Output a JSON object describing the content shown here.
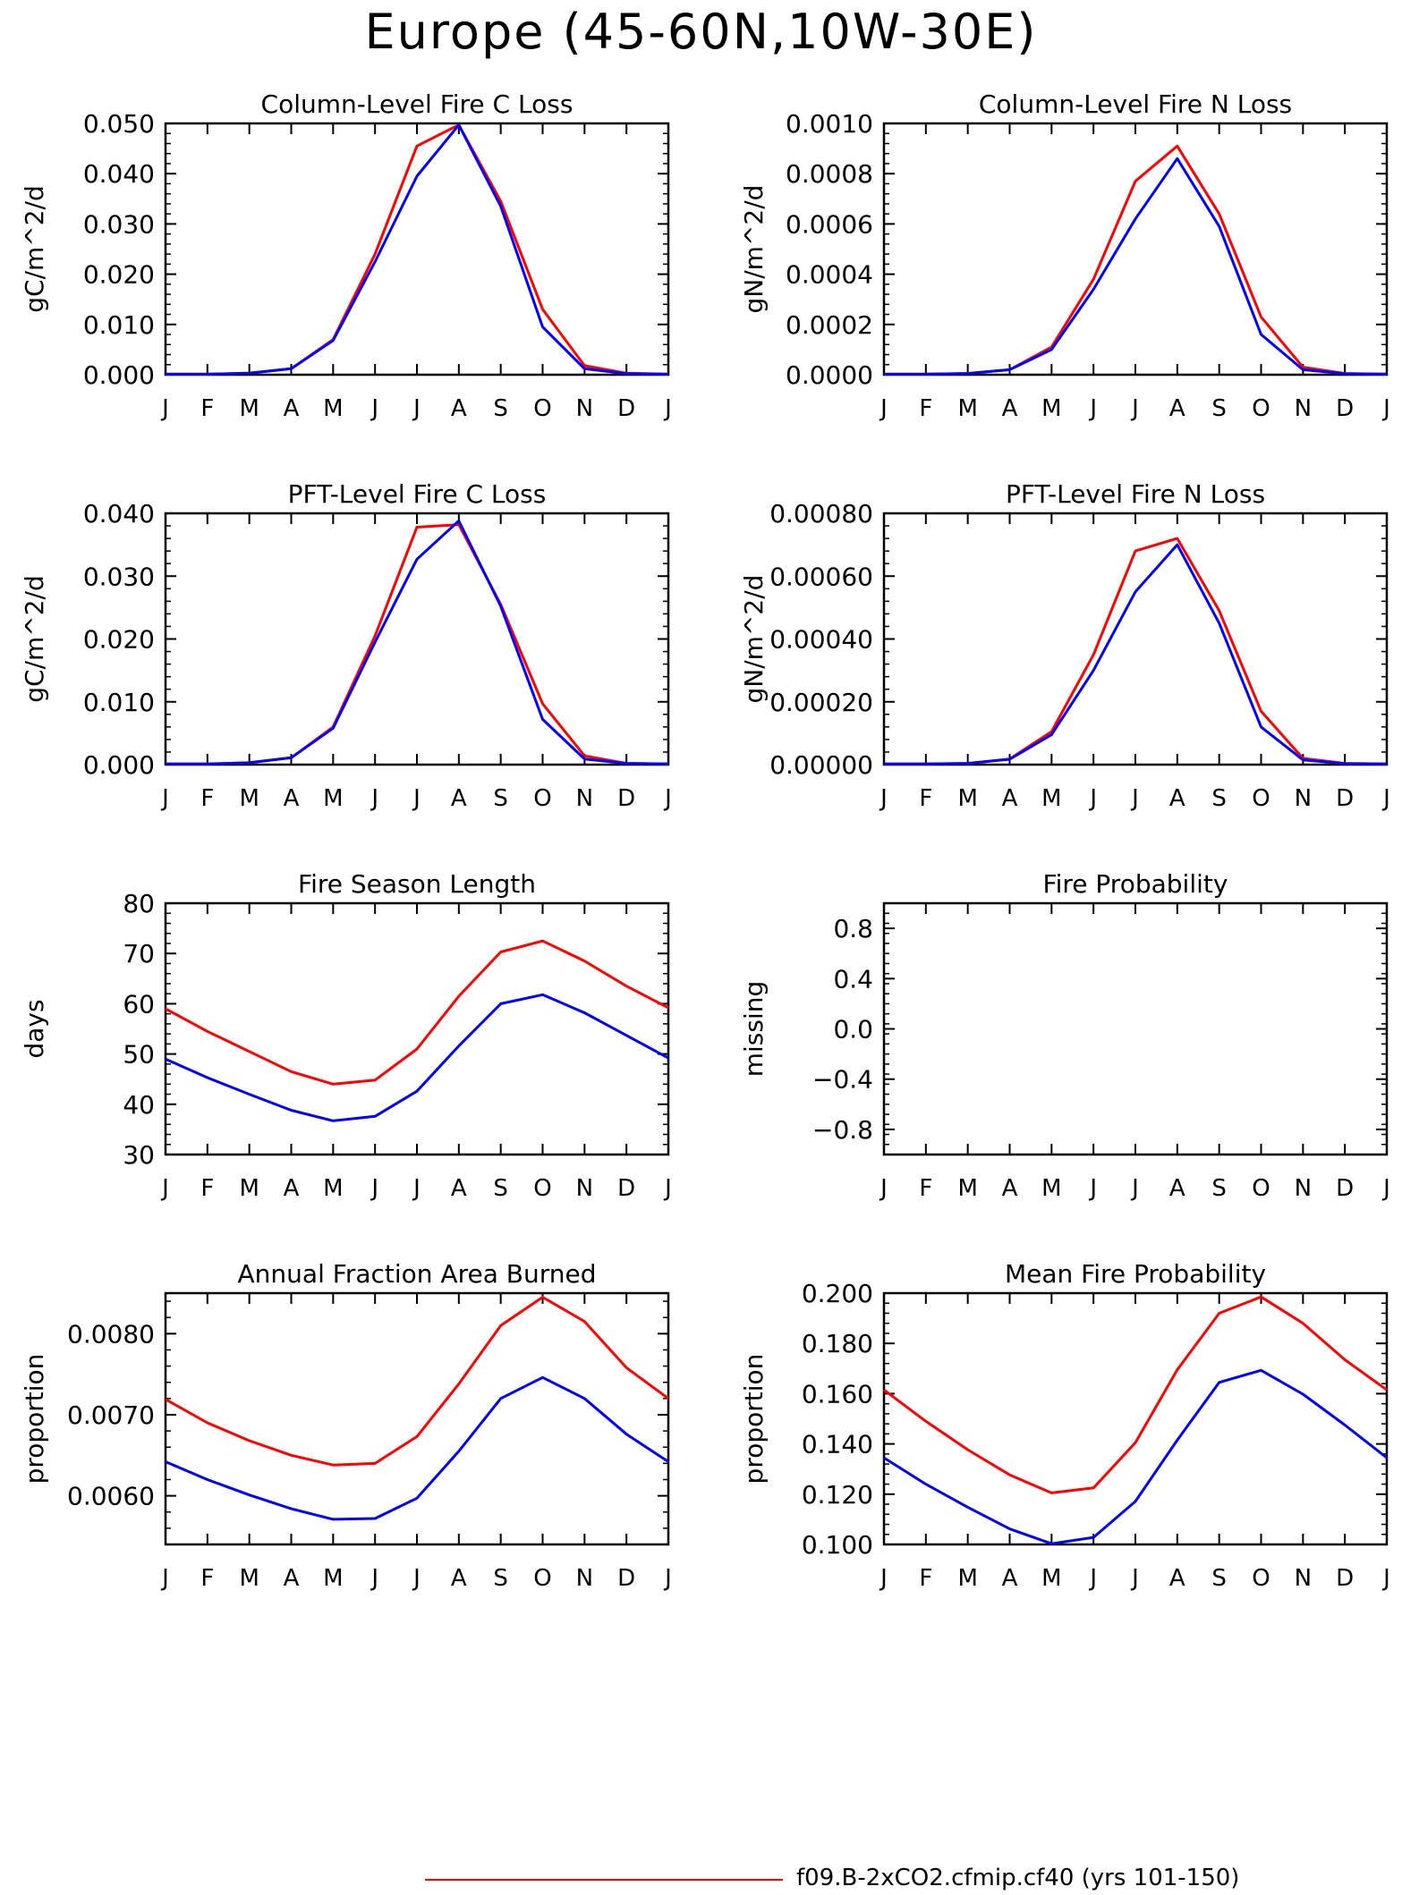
{
  "figure": {
    "title": "Europe (45-60N,10W-30E)",
    "legend_label": "f09.B-2xCO2.cfmip.cf40 (yrs 101-150)",
    "colors": {
      "red_series": "#ff0000",
      "blue_series": "#0000ff"
    }
  },
  "chart_data": [
    {
      "type": "line",
      "title": "Column-Level Fire C Loss",
      "ylabel": "gC/m^2/d",
      "categories": [
        "J",
        "F",
        "M",
        "A",
        "M",
        "J",
        "J",
        "A",
        "S",
        "O",
        "N",
        "D",
        "J"
      ],
      "ylim": [
        0,
        0.05
      ],
      "yticks": [
        0,
        0.01,
        0.02,
        0.03,
        0.04,
        0.05
      ],
      "yticklabels": [
        "0.000",
        "0.010",
        "0.020",
        "0.030",
        "0.040",
        "0.050"
      ],
      "series": [
        {
          "color": "#ff0000",
          "values": [
            0.0001,
            0.0001,
            0.0003,
            0.0012,
            0.007,
            0.024,
            0.0455,
            0.0497,
            0.0345,
            0.013,
            0.0018,
            0.0003,
            0.0001
          ]
        },
        {
          "color": "#0000ff",
          "values": [
            0.0001,
            0.0001,
            0.0003,
            0.0012,
            0.0068,
            0.0225,
            0.0395,
            0.0497,
            0.0335,
            0.0095,
            0.0012,
            0.0002,
            0.0001
          ]
        }
      ]
    },
    {
      "type": "line",
      "title": "Column-Level Fire N Loss",
      "ylabel": "gN/m^2/d",
      "categories": [
        "J",
        "F",
        "M",
        "A",
        "M",
        "J",
        "J",
        "A",
        "S",
        "O",
        "N",
        "D",
        "J"
      ],
      "ylim": [
        0,
        0.001
      ],
      "yticks": [
        0,
        0.0002,
        0.0004,
        0.0006,
        0.0008,
        0.001
      ],
      "yticklabels": [
        "0.0000",
        "0.0002",
        "0.0004",
        "0.0006",
        "0.0008",
        "0.0010"
      ],
      "series": [
        {
          "color": "#ff0000",
          "values": [
            2e-06,
            2e-06,
            5e-06,
            2e-05,
            0.00011,
            0.00038,
            0.00077,
            0.00091,
            0.00064,
            0.00023,
            3e-05,
            5e-06,
            2e-06
          ]
        },
        {
          "color": "#0000ff",
          "values": [
            2e-06,
            2e-06,
            5e-06,
            2e-05,
            0.0001,
            0.00034,
            0.00062,
            0.00086,
            0.00059,
            0.00016,
            2e-05,
            4e-06,
            2e-06
          ]
        }
      ]
    },
    {
      "type": "line",
      "title": "PFT-Level Fire C Loss",
      "ylabel": "gC/m^2/d",
      "categories": [
        "J",
        "F",
        "M",
        "A",
        "M",
        "J",
        "J",
        "A",
        "S",
        "O",
        "N",
        "D",
        "J"
      ],
      "ylim": [
        0,
        0.04
      ],
      "yticks": [
        0,
        0.01,
        0.02,
        0.03,
        0.04
      ],
      "yticklabels": [
        "0.000",
        "0.010",
        "0.020",
        "0.030",
        "0.040"
      ],
      "series": [
        {
          "color": "#ff0000",
          "values": [
            0.0001,
            0.0001,
            0.0003,
            0.0011,
            0.006,
            0.0205,
            0.0378,
            0.0382,
            0.0255,
            0.0097,
            0.0014,
            0.0002,
            0.0001
          ]
        },
        {
          "color": "#0000ff",
          "values": [
            0.0001,
            0.0001,
            0.0003,
            0.0011,
            0.0058,
            0.0195,
            0.0327,
            0.0388,
            0.0252,
            0.0072,
            0.0009,
            0.0002,
            0.0001
          ]
        }
      ]
    },
    {
      "type": "line",
      "title": "PFT-Level Fire N Loss",
      "ylabel": "gN/m^2/d",
      "categories": [
        "J",
        "F",
        "M",
        "A",
        "M",
        "J",
        "J",
        "A",
        "S",
        "O",
        "N",
        "D",
        "J"
      ],
      "ylim": [
        0,
        0.0008
      ],
      "yticks": [
        0,
        0.0002,
        0.0004,
        0.0006,
        0.0008
      ],
      "yticklabels": [
        "0.00000",
        "0.00020",
        "0.00040",
        "0.00060",
        "0.00080"
      ],
      "series": [
        {
          "color": "#ff0000",
          "values": [
            2e-06,
            2e-06,
            4e-06,
            1.8e-05,
            0.000105,
            0.00035,
            0.00068,
            0.00072,
            0.00049,
            0.00017,
            2e-05,
            4e-06,
            2e-06
          ]
        },
        {
          "color": "#0000ff",
          "values": [
            2e-06,
            2e-06,
            4e-06,
            1.7e-05,
            9.5e-05,
            0.0003,
            0.00055,
            0.0007,
            0.00045,
            0.00012,
            1.5e-05,
            3e-06,
            2e-06
          ]
        }
      ]
    },
    {
      "type": "line",
      "title": "Fire Season Length",
      "ylabel": "days",
      "categories": [
        "J",
        "F",
        "M",
        "A",
        "M",
        "J",
        "J",
        "A",
        "S",
        "O",
        "N",
        "D",
        "J"
      ],
      "ylim": [
        30,
        80
      ],
      "yticks": [
        30,
        40,
        50,
        60,
        70,
        80
      ],
      "yticklabels": [
        "30",
        "40",
        "50",
        "60",
        "70",
        "80"
      ],
      "series": [
        {
          "color": "#ff0000",
          "values": [
            59,
            54.5,
            50.5,
            46.5,
            44,
            44.8,
            51,
            61.5,
            70.3,
            72.5,
            68.5,
            63.5,
            59.2
          ]
        },
        {
          "color": "#0000ff",
          "values": [
            49,
            45.3,
            42,
            38.8,
            36.7,
            37.6,
            42.6,
            51.6,
            60,
            61.8,
            58.2,
            53.7,
            49.2
          ]
        }
      ]
    },
    {
      "type": "line",
      "title": "Fire Probability",
      "ylabel": "missing",
      "categories": [
        "J",
        "F",
        "M",
        "A",
        "M",
        "J",
        "J",
        "A",
        "S",
        "O",
        "N",
        "D",
        "J"
      ],
      "ylim": [
        -1,
        1
      ],
      "yticks": [
        -0.8,
        -0.4,
        0.0,
        0.4,
        0.8
      ],
      "yticklabels": [
        "−0.8",
        "−0.4",
        "0.0",
        "0.4",
        "0.8"
      ],
      "series": []
    },
    {
      "type": "line",
      "title": "Annual Fraction Area Burned",
      "ylabel": "proportion",
      "categories": [
        "J",
        "F",
        "M",
        "A",
        "M",
        "J",
        "J",
        "A",
        "S",
        "O",
        "N",
        "D",
        "J"
      ],
      "ylim": [
        0.0054,
        0.0085
      ],
      "yticks": [
        0.006,
        0.007,
        0.008
      ],
      "yticklabels": [
        "0.0060",
        "0.0070",
        "0.0080"
      ],
      "series": [
        {
          "color": "#ff0000",
          "values": [
            0.00719,
            0.0069,
            0.00668,
            0.0065,
            0.00638,
            0.0064,
            0.00673,
            0.00738,
            0.0081,
            0.00845,
            0.00815,
            0.00758,
            0.0072
          ]
        },
        {
          "color": "#0000ff",
          "values": [
            0.00642,
            0.0062,
            0.00601,
            0.00584,
            0.00571,
            0.00572,
            0.00597,
            0.00655,
            0.0072,
            0.00746,
            0.0072,
            0.00676,
            0.00642
          ]
        }
      ]
    },
    {
      "type": "line",
      "title": "Mean Fire Probability",
      "ylabel": "proportion",
      "categories": [
        "J",
        "F",
        "M",
        "A",
        "M",
        "J",
        "J",
        "A",
        "S",
        "O",
        "N",
        "D",
        "J"
      ],
      "ylim": [
        0.1,
        0.2
      ],
      "yticks": [
        0.1,
        0.12,
        0.14,
        0.16,
        0.18,
        0.2
      ],
      "yticklabels": [
        "0.100",
        "0.120",
        "0.140",
        "0.160",
        "0.180",
        "0.200"
      ],
      "series": [
        {
          "color": "#ff0000",
          "values": [
            0.1615,
            0.149,
            0.1377,
            0.1277,
            0.1205,
            0.1225,
            0.1405,
            0.1695,
            0.192,
            0.1985,
            0.188,
            0.1735,
            0.1615
          ]
        },
        {
          "color": "#0000ff",
          "values": [
            0.1345,
            0.124,
            0.1148,
            0.1062,
            0.1003,
            0.1028,
            0.1171,
            0.1415,
            0.1645,
            0.1693,
            0.1598,
            0.1475,
            0.1345
          ]
        }
      ]
    }
  ]
}
